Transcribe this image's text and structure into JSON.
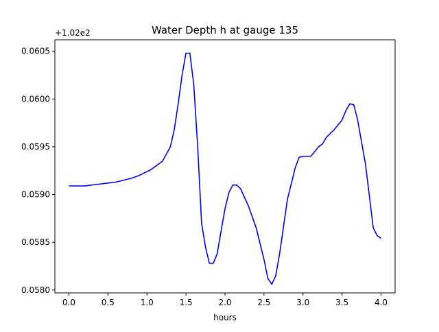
{
  "chart_data": {
    "type": "line",
    "title": "Water Depth h at gauge 135",
    "xlabel": "hours",
    "ylabel": "",
    "offset_label": "+1.02e2",
    "xlim": [
      -0.18,
      4.18
    ],
    "ylim": [
      0.05797,
      0.06062
    ],
    "xticks": [
      0.0,
      0.5,
      1.0,
      1.5,
      2.0,
      2.5,
      3.0,
      3.5,
      4.0
    ],
    "xtick_labels": [
      "0.0",
      "0.5",
      "1.0",
      "1.5",
      "2.0",
      "2.5",
      "3.0",
      "3.5",
      "4.0"
    ],
    "yticks": [
      0.058,
      0.0585,
      0.059,
      0.0595,
      0.06,
      0.0605
    ],
    "ytick_labels": [
      "0.0580",
      "0.0585",
      "0.0590",
      "0.0595",
      "0.0600",
      "0.0605"
    ],
    "grid": false,
    "line_color": "#0000ff",
    "series": [
      {
        "x": [
          0.0,
          0.2,
          0.4,
          0.6,
          0.8,
          0.9,
          1.0,
          1.05,
          1.1,
          1.2,
          1.3,
          1.35,
          1.4,
          1.45,
          1.5,
          1.55,
          1.6,
          1.65,
          1.7,
          1.75,
          1.8,
          1.85,
          1.9,
          1.95,
          2.0,
          2.05,
          2.1,
          2.15,
          2.2,
          2.25,
          2.3,
          2.4,
          2.5,
          2.55,
          2.6,
          2.65,
          2.7,
          2.8,
          2.9,
          2.95,
          3.0,
          3.05,
          3.1,
          3.15,
          3.2,
          3.25,
          3.3,
          3.4,
          3.5,
          3.55,
          3.6,
          3.65,
          3.7,
          3.8,
          3.9,
          3.95,
          4.0
        ],
        "y": [
          0.05909,
          0.05909,
          0.05911,
          0.05913,
          0.05917,
          0.0592,
          0.05924,
          0.05926,
          0.05929,
          0.05935,
          0.0595,
          0.05968,
          0.05995,
          0.06025,
          0.06048,
          0.06048,
          0.06015,
          0.0595,
          0.0587,
          0.05845,
          0.05828,
          0.05828,
          0.05838,
          0.05862,
          0.05885,
          0.05902,
          0.0591,
          0.0591,
          0.05906,
          0.05897,
          0.05888,
          0.05865,
          0.05832,
          0.05812,
          0.05806,
          0.05815,
          0.05838,
          0.05895,
          0.05928,
          0.05939,
          0.0594,
          0.0594,
          0.0594,
          0.05945,
          0.0595,
          0.05953,
          0.0596,
          0.05968,
          0.05978,
          0.05988,
          0.05995,
          0.05994,
          0.05978,
          0.05932,
          0.05865,
          0.05857,
          0.05854
        ]
      }
    ]
  }
}
